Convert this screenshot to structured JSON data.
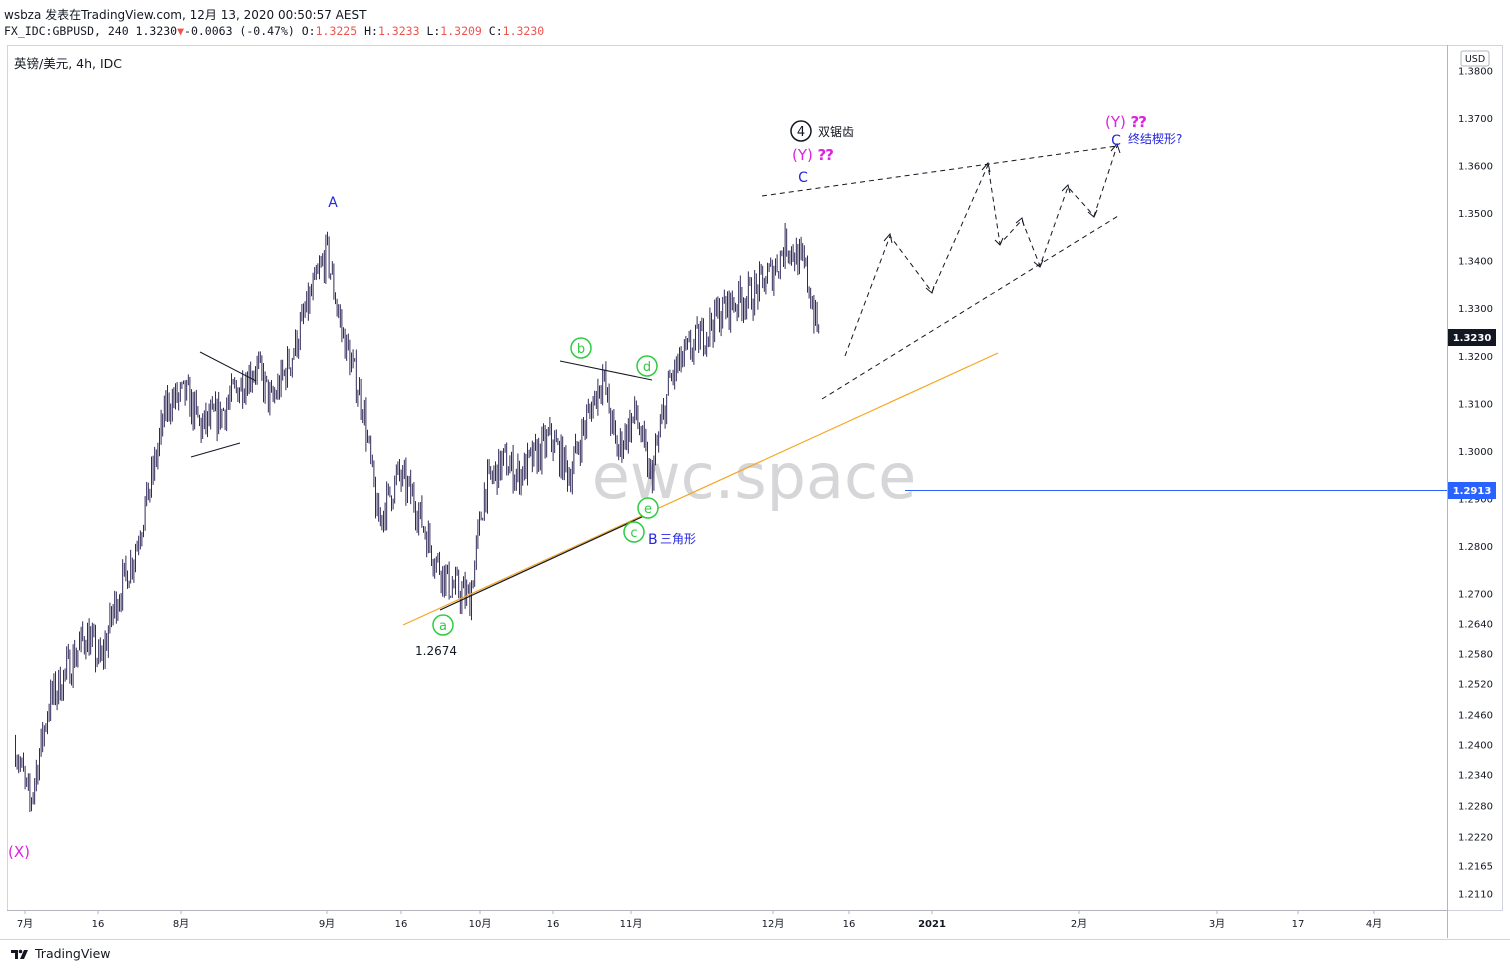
{
  "header": {
    "line1": "wsbza 发表在TradingView.com, 12月 13, 2020 00:50:57 AEST",
    "ticker_prefix": "FX_IDC:GBPUSD, 240 1.3230",
    "change": "-0.0063 (-0.47%)",
    "o_label": "O:",
    "o_value": "1.3225",
    "h_label": "H:",
    "h_value": "1.3233",
    "l_label": "L:",
    "l_value": "1.3209",
    "c_label": "C:",
    "c_value": "1.3230"
  },
  "symbol_title": "英镑/美元, 4h, IDC",
  "currency_badge": "USD",
  "watermark": "ewc.space",
  "footer": {
    "brand": "TradingView"
  },
  "colors": {
    "candle": "#1a1446",
    "blue_label": "#2525e0",
    "magenta": "#e020e0",
    "green": "#2ecc40",
    "trend_orange": "#f5a623",
    "hline": "#2962ff"
  },
  "chart_data": {
    "type": "line",
    "instrument": "GBPUSD",
    "interval": "4h",
    "y_ticks": [
      "1.3800",
      "1.3700",
      "1.3600",
      "1.3500",
      "1.3400",
      "1.3300",
      "1.3200",
      "1.3100",
      "1.3000",
      "1.2900",
      "1.2800",
      "1.2700",
      "1.2640",
      "1.2580",
      "1.2520",
      "1.2460",
      "1.2400",
      "1.2340",
      "1.2280",
      "1.2220",
      "1.2165",
      "1.2110"
    ],
    "x_ticks": [
      "7月",
      "16",
      "8月",
      "9月",
      "16",
      "10月",
      "16",
      "11月",
      "12月",
      "16",
      "2021",
      "2月",
      "3月",
      "17",
      "4月"
    ],
    "last_price_label": "1.3230",
    "hline_label": "1.2913",
    "series": [
      {
        "x": [
          "2020-06-29",
          "2020-07-02",
          "2020-07-06",
          "2020-07-10",
          "2020-07-14",
          "2020-07-17",
          "2020-07-20",
          "2020-07-24",
          "2020-07-28",
          "2020-07-31",
          "2020-08-04",
          "2020-08-07",
          "2020-08-11",
          "2020-08-14",
          "2020-08-18",
          "2020-08-21",
          "2020-08-25",
          "2020-08-28",
          "2020-09-01",
          "2020-09-04",
          "2020-09-08",
          "2020-09-11",
          "2020-09-15",
          "2020-09-18",
          "2020-09-22",
          "2020-09-25",
          "2020-09-29",
          "2020-10-02",
          "2020-10-06",
          "2020-10-09",
          "2020-10-13",
          "2020-10-16",
          "2020-10-20",
          "2020-10-23",
          "2020-10-27",
          "2020-10-30",
          "2020-11-03",
          "2020-11-06",
          "2020-11-10",
          "2020-11-13",
          "2020-11-17",
          "2020-11-20",
          "2020-11-24",
          "2020-11-27",
          "2020-12-01",
          "2020-12-04",
          "2020-12-08",
          "2020-12-11"
        ],
        "y": [
          1.24,
          1.228,
          1.248,
          1.255,
          1.262,
          1.256,
          1.268,
          1.278,
          1.295,
          1.31,
          1.312,
          1.305,
          1.308,
          1.313,
          1.318,
          1.31,
          1.32,
          1.33,
          1.342,
          1.325,
          1.31,
          1.285,
          1.295,
          1.29,
          1.278,
          1.272,
          1.269,
          1.292,
          1.298,
          1.295,
          1.299,
          1.303,
          1.295,
          1.305,
          1.316,
          1.3,
          1.308,
          1.294,
          1.315,
          1.32,
          1.325,
          1.329,
          1.332,
          1.333,
          1.338,
          1.344,
          1.338,
          1.323
        ]
      }
    ],
    "annotations": {
      "X": "(X)",
      "A": "A",
      "B": "B",
      "B_text": "三角形",
      "C": "C",
      "Y1": "(Y)",
      "Y1_q": "⁇",
      "four": "4",
      "four_text": "双锯齿",
      "Y2": "(Y)",
      "Y2_q": "⁇",
      "C2": "C",
      "C2_text": "终结楔形?",
      "a": "a",
      "b": "b",
      "c": "c",
      "d": "d",
      "e": "e",
      "low_value": "1.2674"
    }
  }
}
